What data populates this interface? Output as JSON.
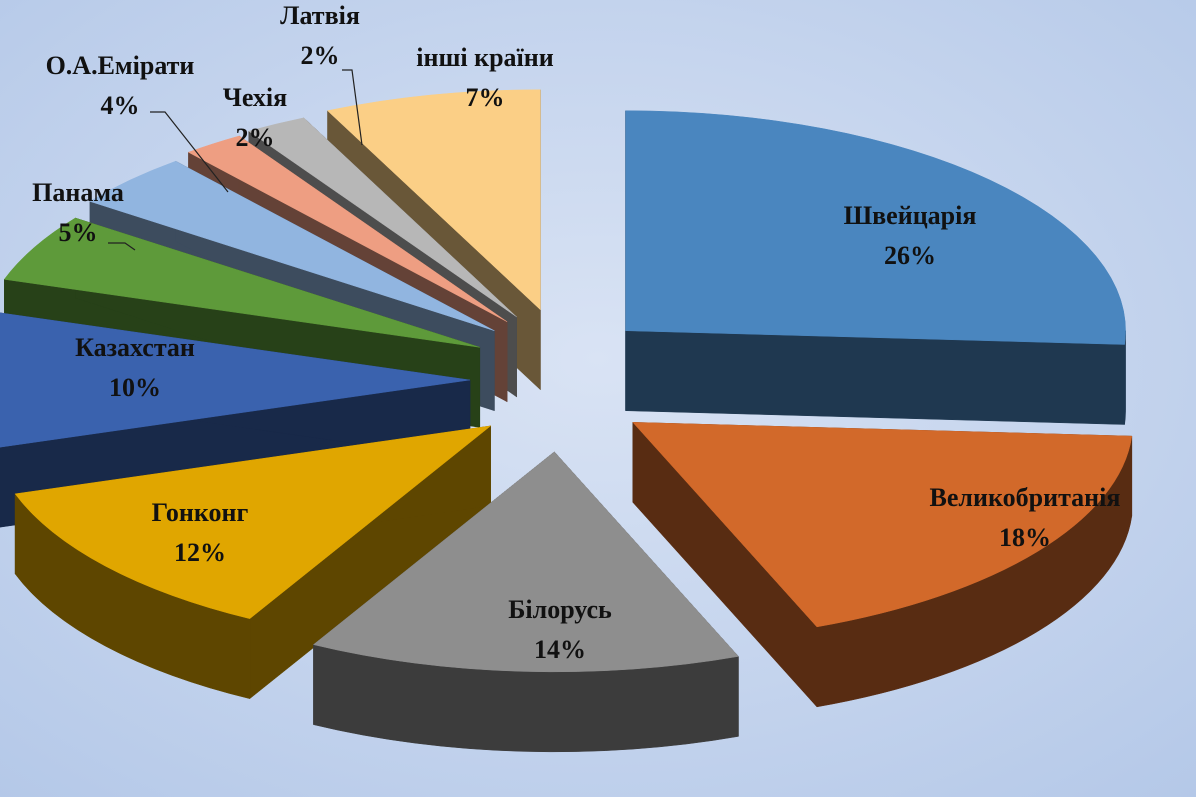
{
  "chart_data": {
    "type": "pie3d",
    "categories": [
      "Швейцарія",
      "Великобританія",
      "Білорусь",
      "Гонконг",
      "Казахстан",
      "Панама",
      "О.А.Емірати",
      "Чехія",
      "Латвія",
      "інші країни"
    ],
    "values": [
      26,
      18,
      14,
      12,
      10,
      5,
      4,
      2,
      2,
      7
    ],
    "value_labels": [
      "26%",
      "18%",
      "14%",
      "12%",
      "10%",
      "5%",
      "4%",
      "2%",
      "2%",
      "7%"
    ],
    "colors": [
      "#4a86bf",
      "#d2692a",
      "#8e8e8e",
      "#e0a600",
      "#3a62ae",
      "#5e9a3a",
      "#91b5e0",
      "#ee9e82",
      "#b7b7b7",
      "#fbcf86"
    ],
    "start_angle": 0,
    "direction": "clockwise",
    "exploded": true
  }
}
